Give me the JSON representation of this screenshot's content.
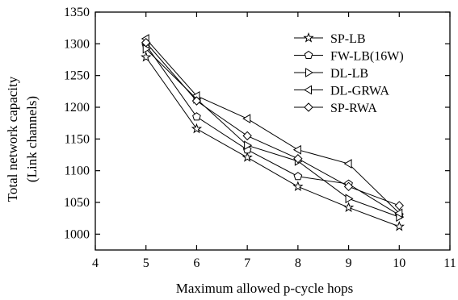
{
  "chart_data": {
    "type": "line",
    "xlabel": "Maximum allowed p-cycle hops",
    "ylabel_line1": "Total network capacity",
    "ylabel_line2": "(Link channels)",
    "xlim": [
      4,
      11
    ],
    "ylim": [
      975,
      1350
    ],
    "xticks": [
      4,
      5,
      6,
      7,
      8,
      9,
      10,
      11
    ],
    "yticks": [
      1000,
      1050,
      1100,
      1150,
      1200,
      1250,
      1300,
      1350
    ],
    "grid": false,
    "legend_position": "top-right",
    "x": [
      5,
      6,
      7,
      8,
      9,
      10
    ],
    "series": [
      {
        "name": "SP-LB",
        "marker": "star",
        "values": [
          1279,
          1166,
          1121,
          1075,
          1042,
          1012
        ]
      },
      {
        "name": "FW-LB(16W)",
        "marker": "pentagon",
        "values": [
          1298,
          1185,
          1133,
          1091,
          1079,
          1030
        ]
      },
      {
        "name": "DL-LB",
        "marker": "triangle-right",
        "values": [
          1292,
          1213,
          1140,
          1115,
          1056,
          1027
        ]
      },
      {
        "name": "DL-GRWA",
        "marker": "triangle-left",
        "values": [
          1308,
          1218,
          1182,
          1133,
          1111,
          1033
        ]
      },
      {
        "name": "SP-RWA",
        "marker": "diamond",
        "values": [
          1302,
          1210,
          1155,
          1119,
          1075,
          1045
        ]
      }
    ]
  }
}
